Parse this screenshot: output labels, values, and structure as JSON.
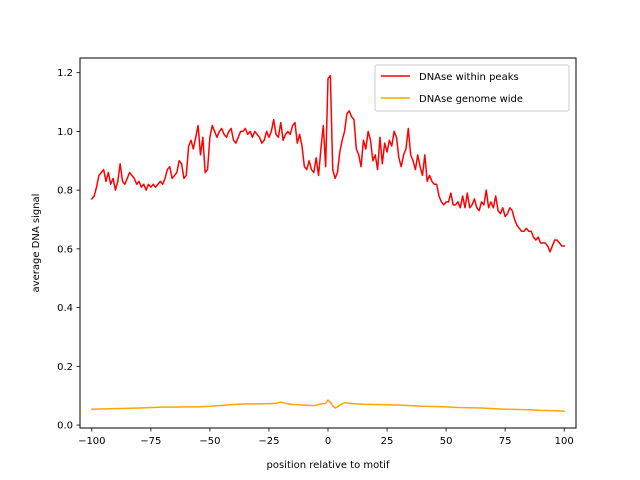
{
  "chart_data": {
    "type": "line",
    "title": "",
    "xlabel": "position relative to motif",
    "ylabel": "average DNA signal",
    "xlim": [
      -105,
      105
    ],
    "ylim": [
      -0.01,
      1.25
    ],
    "xticks": [
      -100,
      -75,
      -50,
      -25,
      0,
      25,
      50,
      75,
      100
    ],
    "xtick_labels": [
      "−100",
      "−75",
      "−50",
      "−25",
      "0",
      "25",
      "50",
      "75",
      "100"
    ],
    "yticks": [
      0.0,
      0.2,
      0.4,
      0.6,
      0.8,
      1.0,
      1.2
    ],
    "ytick_labels": [
      "0.0",
      "0.2",
      "0.4",
      "0.6",
      "0.8",
      "1.0",
      "1.2"
    ],
    "grid": false,
    "legend_position": "top-right",
    "series": [
      {
        "name": "DNAse within peaks",
        "color": "#ff0000",
        "points": [
          [
            -100,
            0.77
          ],
          [
            -99,
            0.78
          ],
          [
            -98,
            0.81
          ],
          [
            -97,
            0.85
          ],
          [
            -96,
            0.86
          ],
          [
            -95,
            0.87
          ],
          [
            -94,
            0.83
          ],
          [
            -93,
            0.86
          ],
          [
            -92,
            0.82
          ],
          [
            -91,
            0.84
          ],
          [
            -90,
            0.8
          ],
          [
            -89,
            0.83
          ],
          [
            -88,
            0.89
          ],
          [
            -87,
            0.83
          ],
          [
            -86,
            0.82
          ],
          [
            -85,
            0.84
          ],
          [
            -84,
            0.86
          ],
          [
            -83,
            0.85
          ],
          [
            -82,
            0.84
          ],
          [
            -81,
            0.82
          ],
          [
            -80,
            0.83
          ],
          [
            -79,
            0.81
          ],
          [
            -78,
            0.82
          ],
          [
            -77,
            0.8
          ],
          [
            -76,
            0.82
          ],
          [
            -75,
            0.81
          ],
          [
            -74,
            0.82
          ],
          [
            -73,
            0.81
          ],
          [
            -72,
            0.82
          ],
          [
            -71,
            0.83
          ],
          [
            -70,
            0.82
          ],
          [
            -69,
            0.84
          ],
          [
            -68,
            0.87
          ],
          [
            -67,
            0.88
          ],
          [
            -66,
            0.84
          ],
          [
            -65,
            0.85
          ],
          [
            -64,
            0.86
          ],
          [
            -63,
            0.9
          ],
          [
            -62,
            0.89
          ],
          [
            -61,
            0.84
          ],
          [
            -60,
            0.85
          ],
          [
            -59,
            0.95
          ],
          [
            -58,
            0.97
          ],
          [
            -57,
            0.94
          ],
          [
            -56,
            0.98
          ],
          [
            -55,
            1.02
          ],
          [
            -54,
            0.92
          ],
          [
            -53,
            0.98
          ],
          [
            -52,
            0.86
          ],
          [
            -51,
            0.87
          ],
          [
            -50,
            0.98
          ],
          [
            -49,
            1.02
          ],
          [
            -48,
            1.0
          ],
          [
            -47,
            0.98
          ],
          [
            -46,
            1.0
          ],
          [
            -45,
            1.01
          ],
          [
            -44,
            0.99
          ],
          [
            -43,
            0.98
          ],
          [
            -42,
            1.0
          ],
          [
            -41,
            1.01
          ],
          [
            -40,
            0.97
          ],
          [
            -39,
            0.96
          ],
          [
            -38,
            0.98
          ],
          [
            -37,
            1.0
          ],
          [
            -36,
            1.0
          ],
          [
            -35,
            1.01
          ],
          [
            -34,
            0.99
          ],
          [
            -33,
            1.0
          ],
          [
            -32,
            0.98
          ],
          [
            -31,
            1.0
          ],
          [
            -30,
            0.99
          ],
          [
            -29,
            0.98
          ],
          [
            -28,
            0.96
          ],
          [
            -27,
            0.97
          ],
          [
            -26,
            1.0
          ],
          [
            -25,
            0.98
          ],
          [
            -24,
            1.0
          ],
          [
            -23,
            1.04
          ],
          [
            -22,
            0.99
          ],
          [
            -21,
            0.98
          ],
          [
            -20,
            1.03
          ],
          [
            -19,
            0.97
          ],
          [
            -18,
            0.99
          ],
          [
            -17,
            1.0
          ],
          [
            -16,
            0.99
          ],
          [
            -15,
            1.02
          ],
          [
            -14,
            1.03
          ],
          [
            -13,
            0.96
          ],
          [
            -12,
            0.99
          ],
          [
            -11,
            0.95
          ],
          [
            -10,
            0.88
          ],
          [
            -9,
            0.87
          ],
          [
            -8,
            0.9
          ],
          [
            -7,
            0.87
          ],
          [
            -6,
            0.86
          ],
          [
            -5,
            0.91
          ],
          [
            -4,
            0.85
          ],
          [
            -3,
            0.94
          ],
          [
            -2,
            1.02
          ],
          [
            -1,
            0.88
          ],
          [
            0,
            1.18
          ],
          [
            1,
            1.19
          ],
          [
            2,
            0.87
          ],
          [
            3,
            0.84
          ],
          [
            4,
            0.86
          ],
          [
            5,
            0.93
          ],
          [
            6,
            0.97
          ],
          [
            7,
            1.0
          ],
          [
            8,
            1.06
          ],
          [
            9,
            1.07
          ],
          [
            10,
            1.05
          ],
          [
            11,
            1.04
          ],
          [
            12,
            0.94
          ],
          [
            13,
            0.92
          ],
          [
            14,
            0.88
          ],
          [
            15,
            0.97
          ],
          [
            16,
            0.94
          ],
          [
            17,
            1.0
          ],
          [
            18,
            0.97
          ],
          [
            19,
            0.9
          ],
          [
            20,
            0.92
          ],
          [
            21,
            0.87
          ],
          [
            22,
            0.98
          ],
          [
            23,
            0.89
          ],
          [
            24,
            0.96
          ],
          [
            25,
            0.93
          ],
          [
            26,
            0.97
          ],
          [
            27,
            0.95
          ],
          [
            28,
            1.0
          ],
          [
            29,
            0.98
          ],
          [
            30,
            0.91
          ],
          [
            31,
            0.88
          ],
          [
            32,
            0.92
          ],
          [
            33,
            0.94
          ],
          [
            34,
            1.01
          ],
          [
            35,
            0.92
          ],
          [
            36,
            0.9
          ],
          [
            37,
            0.87
          ],
          [
            38,
            0.92
          ],
          [
            39,
            0.88
          ],
          [
            40,
            0.85
          ],
          [
            41,
            0.92
          ],
          [
            42,
            0.83
          ],
          [
            43,
            0.85
          ],
          [
            44,
            0.83
          ],
          [
            45,
            0.82
          ],
          [
            46,
            0.82
          ],
          [
            47,
            0.78
          ],
          [
            48,
            0.76
          ],
          [
            49,
            0.75
          ],
          [
            50,
            0.76
          ],
          [
            51,
            0.76
          ],
          [
            52,
            0.79
          ],
          [
            53,
            0.75
          ],
          [
            54,
            0.75
          ],
          [
            55,
            0.76
          ],
          [
            56,
            0.74
          ],
          [
            57,
            0.78
          ],
          [
            58,
            0.74
          ],
          [
            59,
            0.79
          ],
          [
            60,
            0.74
          ],
          [
            61,
            0.75
          ],
          [
            62,
            0.77
          ],
          [
            63,
            0.74
          ],
          [
            64,
            0.73
          ],
          [
            65,
            0.76
          ],
          [
            66,
            0.75
          ],
          [
            67,
            0.8
          ],
          [
            68,
            0.74
          ],
          [
            69,
            0.76
          ],
          [
            70,
            0.74
          ],
          [
            71,
            0.78
          ],
          [
            72,
            0.73
          ],
          [
            73,
            0.72
          ],
          [
            74,
            0.74
          ],
          [
            75,
            0.71
          ],
          [
            76,
            0.72
          ],
          [
            77,
            0.74
          ],
          [
            78,
            0.73
          ],
          [
            79,
            0.7
          ],
          [
            80,
            0.68
          ],
          [
            81,
            0.67
          ],
          [
            82,
            0.66
          ],
          [
            83,
            0.66
          ],
          [
            84,
            0.67
          ],
          [
            85,
            0.66
          ],
          [
            86,
            0.66
          ],
          [
            87,
            0.64
          ],
          [
            88,
            0.63
          ],
          [
            89,
            0.64
          ],
          [
            90,
            0.62
          ],
          [
            91,
            0.62
          ],
          [
            92,
            0.62
          ],
          [
            93,
            0.61
          ],
          [
            94,
            0.59
          ],
          [
            95,
            0.61
          ],
          [
            96,
            0.63
          ],
          [
            97,
            0.63
          ],
          [
            98,
            0.62
          ],
          [
            99,
            0.61
          ],
          [
            100,
            0.61
          ]
        ]
      },
      {
        "name": "DNAse genome wide",
        "color": "#ffa500",
        "points": [
          [
            -100,
            0.054
          ],
          [
            -95,
            0.055
          ],
          [
            -90,
            0.056
          ],
          [
            -85,
            0.057
          ],
          [
            -80,
            0.058
          ],
          [
            -75,
            0.06
          ],
          [
            -70,
            0.061
          ],
          [
            -65,
            0.061
          ],
          [
            -60,
            0.062
          ],
          [
            -55,
            0.062
          ],
          [
            -50,
            0.064
          ],
          [
            -45,
            0.067
          ],
          [
            -40,
            0.07
          ],
          [
            -35,
            0.072
          ],
          [
            -30,
            0.072
          ],
          [
            -25,
            0.073
          ],
          [
            -22,
            0.074
          ],
          [
            -20,
            0.078
          ],
          [
            -18,
            0.074
          ],
          [
            -15,
            0.07
          ],
          [
            -10,
            0.068
          ],
          [
            -6,
            0.066
          ],
          [
            -3,
            0.072
          ],
          [
            -1,
            0.074
          ],
          [
            0,
            0.085
          ],
          [
            1,
            0.078
          ],
          [
            2,
            0.066
          ],
          [
            3,
            0.058
          ],
          [
            4,
            0.062
          ],
          [
            5,
            0.068
          ],
          [
            7,
            0.076
          ],
          [
            10,
            0.073
          ],
          [
            15,
            0.071
          ],
          [
            20,
            0.07
          ],
          [
            25,
            0.069
          ],
          [
            30,
            0.068
          ],
          [
            35,
            0.066
          ],
          [
            40,
            0.064
          ],
          [
            45,
            0.063
          ],
          [
            50,
            0.062
          ],
          [
            55,
            0.06
          ],
          [
            60,
            0.059
          ],
          [
            65,
            0.058
          ],
          [
            70,
            0.056
          ],
          [
            75,
            0.054
          ],
          [
            80,
            0.053
          ],
          [
            85,
            0.052
          ],
          [
            90,
            0.05
          ],
          [
            95,
            0.049
          ],
          [
            100,
            0.047
          ]
        ]
      }
    ]
  }
}
